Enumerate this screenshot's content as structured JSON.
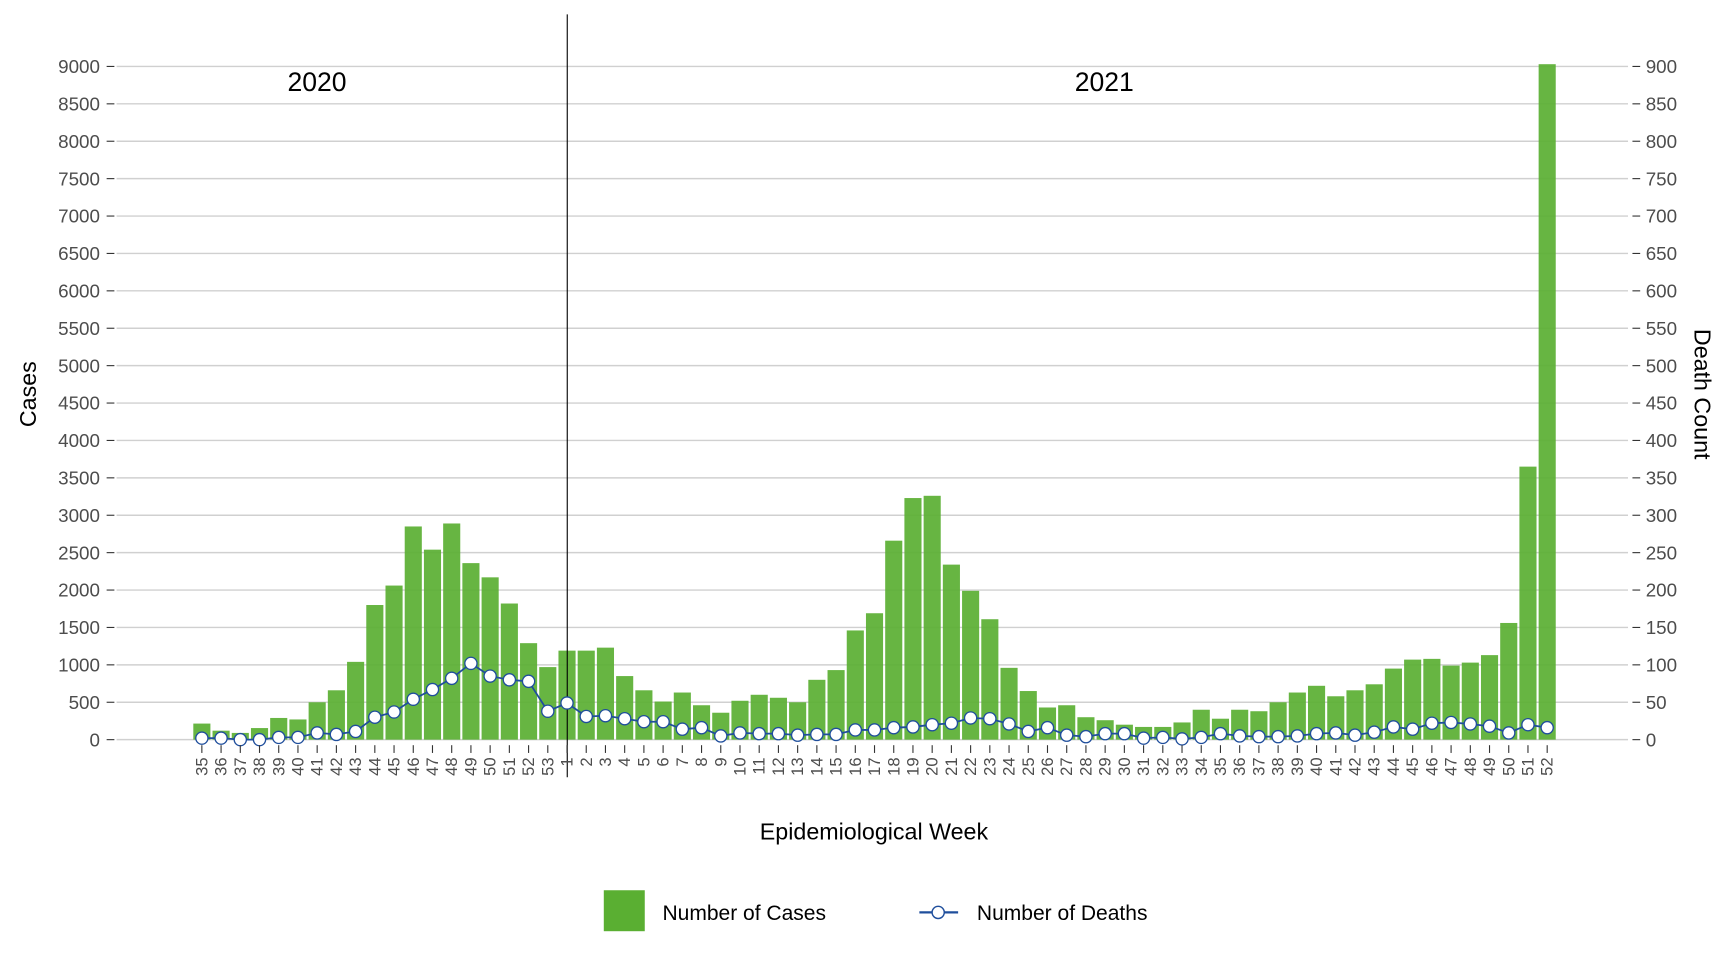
{
  "chart_data": {
    "type": "bar",
    "title": "",
    "xlabel": "Epidemiological Week",
    "ylabel": "Cases",
    "y2label": "Death Count",
    "ylim": [
      0,
      9000
    ],
    "y2lim": [
      0,
      900
    ],
    "yticks": [
      "0",
      "500",
      "1000",
      "1500",
      "2000",
      "2500",
      "3000",
      "3500",
      "4000",
      "4500",
      "5000",
      "5500",
      "6000",
      "6500",
      "7000",
      "7500",
      "8000",
      "8500",
      "9000"
    ],
    "y2ticks": [
      "0",
      "50",
      "100",
      "150",
      "200",
      "250",
      "300",
      "350",
      "400",
      "450",
      "500",
      "550",
      "600",
      "650",
      "700",
      "750",
      "800",
      "850",
      "900"
    ],
    "grid": true,
    "legend_position": "bottom",
    "year_labels": [
      "2020",
      "2021"
    ],
    "categories": [
      "35",
      "36",
      "37",
      "38",
      "39",
      "40",
      "41",
      "42",
      "43",
      "44",
      "45",
      "46",
      "47",
      "48",
      "49",
      "50",
      "51",
      "52",
      "53",
      "1",
      "2",
      "3",
      "4",
      "5",
      "6",
      "7",
      "8",
      "9",
      "10",
      "11",
      "12",
      "13",
      "14",
      "15",
      "16",
      "17",
      "18",
      "19",
      "20",
      "21",
      "22",
      "23",
      "24",
      "25",
      "26",
      "27",
      "28",
      "29",
      "30",
      "31",
      "32",
      "33",
      "34",
      "35",
      "36",
      "37",
      "38",
      "39",
      "40",
      "41",
      "42",
      "43",
      "44",
      "45",
      "46",
      "47",
      "48",
      "49",
      "50",
      "51",
      "52"
    ],
    "series": [
      {
        "name": "Number of Cases",
        "type": "bar",
        "axis": "left",
        "color": "#5aaf32",
        "values": [
          215,
          120,
          90,
          155,
          290,
          270,
          500,
          660,
          1040,
          1800,
          2060,
          2850,
          2540,
          2890,
          2360,
          2170,
          1820,
          1290,
          970,
          1190,
          1190,
          1230,
          850,
          660,
          510,
          630,
          460,
          360,
          520,
          600,
          560,
          500,
          800,
          930,
          1460,
          1690,
          2660,
          3230,
          3260,
          2340,
          1990,
          1610,
          960,
          650,
          430,
          460,
          300,
          260,
          200,
          170,
          170,
          230,
          400,
          280,
          400,
          380,
          500,
          630,
          720,
          580,
          660,
          740,
          950,
          1070,
          1080,
          990,
          1030,
          1130,
          1560,
          3650,
          9030
        ]
      },
      {
        "name": "Number of Deaths",
        "type": "line",
        "axis": "right",
        "color": "#1f4e9c",
        "values": [
          2,
          2,
          0,
          0,
          3,
          3,
          9,
          7,
          11,
          30,
          37,
          54,
          67,
          82,
          102,
          85,
          80,
          78,
          38,
          49,
          31,
          32,
          28,
          24,
          24,
          14,
          16,
          5,
          9,
          8,
          8,
          6,
          7,
          7,
          13,
          13,
          16,
          17,
          20,
          22,
          29,
          28,
          21,
          11,
          16,
          6,
          4,
          8,
          8,
          2,
          3,
          1,
          3,
          8,
          5,
          4,
          4,
          5,
          8,
          9,
          6,
          10,
          17,
          14,
          22,
          23,
          21,
          18,
          9,
          20,
          16
        ]
      }
    ]
  }
}
